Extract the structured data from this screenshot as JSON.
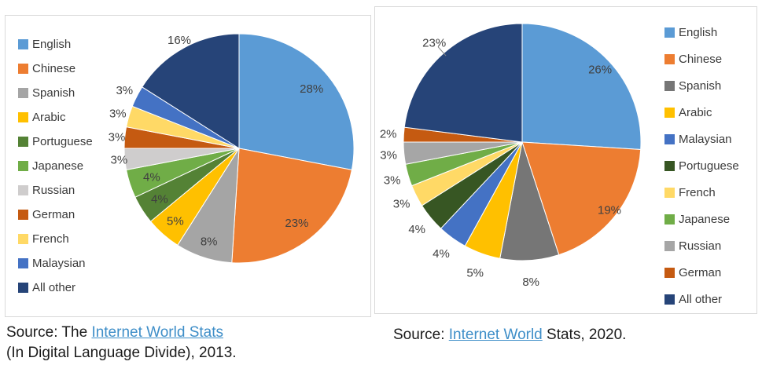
{
  "charts": [
    {
      "name": "internet-languages-2013",
      "source": {
        "prefix": "Source: The ",
        "link_text": "Internet World Stats",
        "suffix": "",
        "line2": "(In Digital Language Divide), 2013."
      },
      "chart_data": {
        "type": "pie",
        "title": "",
        "legend_position": "left",
        "start_angle_deg": 0,
        "direction": "clockwise",
        "categories": [
          "English",
          "Chinese",
          "Spanish",
          "Arabic",
          "Portuguese",
          "Japanese",
          "Russian",
          "German",
          "French",
          "Malaysian",
          "All other"
        ],
        "values": [
          28,
          23,
          8,
          5,
          4,
          4,
          3,
          3,
          3,
          3,
          16
        ],
        "labels": [
          "28%",
          "23%",
          "8%",
          "5%",
          "4%",
          "4%",
          "3%",
          "3%",
          "3%",
          "3%",
          "16%"
        ],
        "colors": [
          "#5B9BD5",
          "#ED7D31",
          "#A5A5A5",
          "#FFC000",
          "#548235",
          "#70AD47",
          "#CFCDCD",
          "#C55A11",
          "#FFD966",
          "#4472C4",
          "#264478"
        ],
        "label_factors": [
          0.82,
          0.82,
          0.85,
          0.84,
          0.82,
          0.8,
          1.05,
          1.07,
          1.1,
          1.12,
          1.08
        ],
        "leader_index": -1
      }
    },
    {
      "name": "internet-languages-2020",
      "source": {
        "prefix": "Source: ",
        "link_text": "Internet World",
        "suffix": " Stats, 2020.",
        "line2": ""
      },
      "chart_data": {
        "type": "pie",
        "title": "",
        "legend_position": "right",
        "start_angle_deg": 0,
        "direction": "clockwise",
        "categories": [
          "English",
          "Chinese",
          "Spanish",
          "Arabic",
          "Malaysian",
          "Portuguese",
          "French",
          "Japanese",
          "Russian",
          "German",
          "All other"
        ],
        "values": [
          26,
          19,
          8,
          5,
          4,
          4,
          3,
          3,
          3,
          2,
          23
        ],
        "labels": [
          "26%",
          "19%",
          "8%",
          "5%",
          "4%",
          "4%",
          "3%",
          "3%",
          "3%",
          "2%",
          "23%"
        ],
        "colors": [
          "#5B9BD5",
          "#ED7D31",
          "#767676",
          "#FFC000",
          "#4472C4",
          "#375623",
          "#FFD966",
          "#70AD47",
          "#A6A6A6",
          "#C55A11",
          "#264478"
        ],
        "label_factors": [
          0.9,
          0.93,
          1.18,
          1.17,
          1.16,
          1.15,
          1.14,
          1.14,
          1.13,
          1.13,
          1.12
        ],
        "leader_index": 10
      }
    }
  ]
}
